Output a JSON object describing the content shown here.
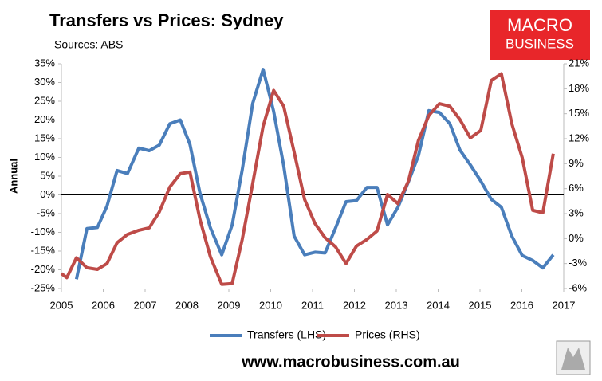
{
  "chart_data": {
    "type": "line",
    "title": "Transfers vs Prices: Sydney",
    "subtitle": "Sources: ABS",
    "logo": [
      "MACRO",
      "BUSINESS"
    ],
    "footer": "www.macrobusiness.com.au",
    "y_label": "Annual",
    "xlim": [
      2005,
      2017
    ],
    "xticks": [
      2005,
      2006,
      2007,
      2008,
      2009,
      2010,
      2011,
      2012,
      2013,
      2014,
      2015,
      2016,
      2017
    ],
    "ylim": [
      -25,
      35
    ],
    "yticks": [
      {
        "value": -25,
        "label": "-25%"
      },
      {
        "value": -20,
        "label": "-20%"
      },
      {
        "value": -15,
        "label": "-15%"
      },
      {
        "value": -10,
        "label": "-10%"
      },
      {
        "value": -5,
        "label": "-5%"
      },
      {
        "value": 0,
        "label": "0%"
      },
      {
        "value": 5,
        "label": "5%"
      },
      {
        "value": 10,
        "label": "10%"
      },
      {
        "value": 15,
        "label": "15%"
      },
      {
        "value": 20,
        "label": "20%"
      },
      {
        "value": 25,
        "label": "25%"
      },
      {
        "value": 30,
        "label": "30%"
      },
      {
        "value": 35,
        "label": "35%"
      }
    ],
    "y2lim": [
      -6,
      21
    ],
    "y2ticks": [
      {
        "value": -6,
        "label": "-6%"
      },
      {
        "value": -3,
        "label": "-3%"
      },
      {
        "value": 0,
        "label": "0%"
      },
      {
        "value": 3,
        "label": "3%"
      },
      {
        "value": 6,
        "label": "6%"
      },
      {
        "value": 9,
        "label": "9%"
      },
      {
        "value": 12,
        "label": "12%"
      },
      {
        "value": 15,
        "label": "15%"
      },
      {
        "value": 18,
        "label": "18%"
      },
      {
        "value": 21,
        "label": "21%"
      }
    ],
    "grid": false,
    "legend": "bottom",
    "series": [
      {
        "name": "Transfers (LHS)",
        "color": "#4a7ebb",
        "axis": "y",
        "x": [
          2005.36,
          2005.61,
          2005.86,
          2006.09,
          2006.33,
          2006.58,
          2006.85,
          2007.1,
          2007.34,
          2007.59,
          2007.84,
          2008.07,
          2008.31,
          2008.56,
          2008.83,
          2009.08,
          2009.32,
          2009.57,
          2009.82,
          2010.07,
          2010.31,
          2010.56,
          2010.81,
          2011.06,
          2011.3,
          2011.55,
          2011.8,
          2012.05,
          2012.3,
          2012.54,
          2012.79,
          2013.04,
          2013.29,
          2013.53,
          2013.78,
          2014.03,
          2014.28,
          2014.52,
          2014.77,
          2015.02,
          2015.27,
          2015.51,
          2015.76,
          2016.01,
          2016.26,
          2016.5,
          2016.75
        ],
        "values": [
          -22.5,
          -9,
          -8.7,
          -3,
          6.5,
          5.7,
          12.5,
          11.8,
          13.3,
          19,
          20,
          13.5,
          0.5,
          -8.8,
          -16,
          -8,
          6.7,
          24.4,
          33.5,
          22.3,
          7.8,
          -11,
          -16,
          -15.3,
          -15.5,
          -8.8,
          -1.8,
          -1.5,
          2,
          2,
          -8,
          -3.3,
          3.5,
          10.5,
          22.5,
          22,
          19,
          12,
          8,
          3.7,
          -1.2,
          -3.3,
          -11,
          -16.2,
          -17.5,
          -19.5,
          -16
        ]
      },
      {
        "name": "Prices (RHS)",
        "color": "#be4b48",
        "axis": "y2",
        "x": [
          2005.0,
          2005.13,
          2005.36,
          2005.61,
          2005.86,
          2006.09,
          2006.33,
          2006.58,
          2006.85,
          2007.1,
          2007.34,
          2007.59,
          2007.84,
          2008.07,
          2008.31,
          2008.56,
          2008.83,
          2009.08,
          2009.32,
          2009.57,
          2009.82,
          2010.07,
          2010.31,
          2010.56,
          2010.81,
          2011.06,
          2011.3,
          2011.55,
          2011.8,
          2012.05,
          2012.3,
          2012.54,
          2012.79,
          2013.04,
          2013.29,
          2013.53,
          2013.78,
          2014.03,
          2014.28,
          2014.52,
          2014.77,
          2015.02,
          2015.27,
          2015.51,
          2015.76,
          2016.01,
          2016.26,
          2016.5,
          2016.75
        ],
        "values": [
          -4.2,
          -4.7,
          -2.3,
          -3.5,
          -3.7,
          -3.0,
          -0.5,
          0.5,
          1.0,
          1.3,
          3.2,
          6.2,
          7.8,
          8.0,
          2.3,
          -2.2,
          -5.5,
          -5.4,
          -0.1,
          6.6,
          13.5,
          17.8,
          15.9,
          10.4,
          4.7,
          1.8,
          0.1,
          -1.0,
          -3.0,
          -0.9,
          -0.1,
          0.9,
          5.3,
          4.2,
          6.9,
          11.8,
          14.8,
          16.2,
          15.9,
          14.3,
          12.1,
          13.0,
          19.0,
          19.8,
          13.8,
          9.7,
          3.4,
          3.1,
          10.2
        ]
      }
    ]
  }
}
